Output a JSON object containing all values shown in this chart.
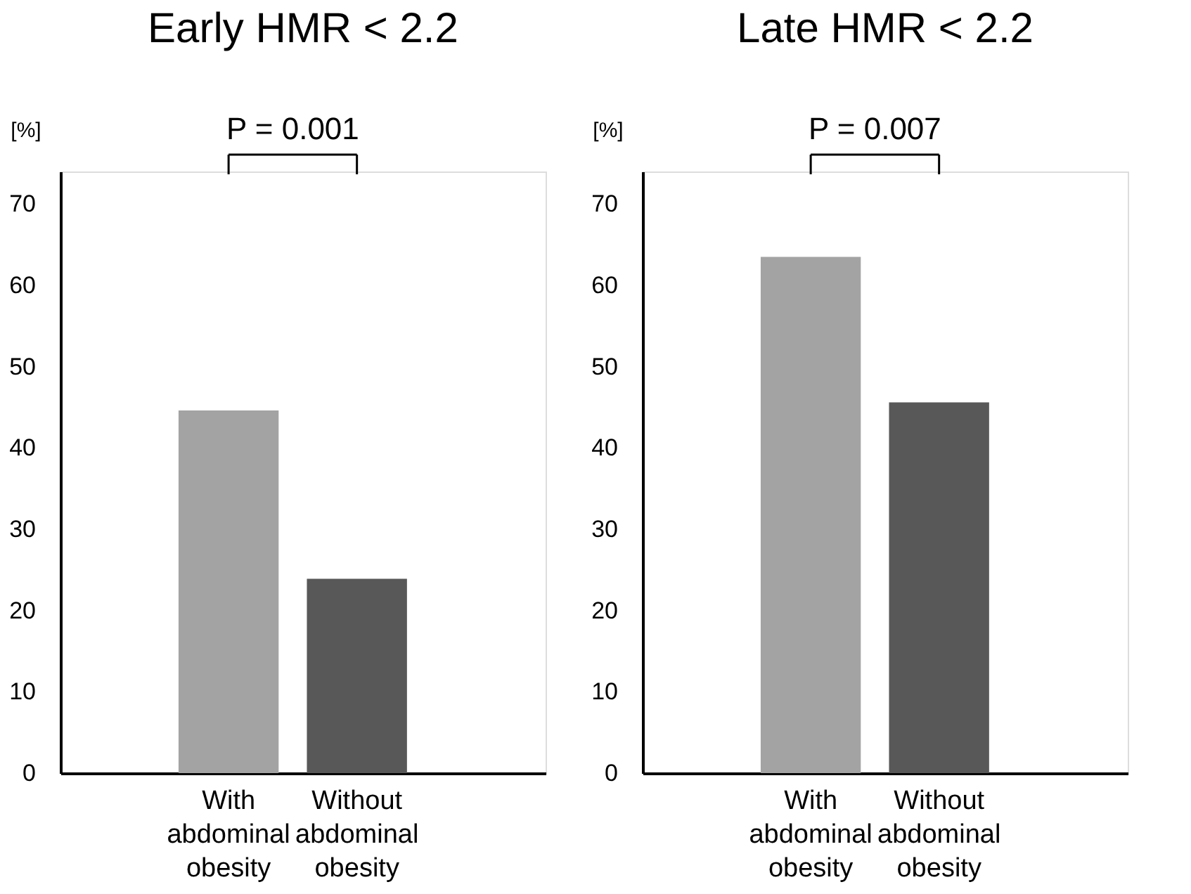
{
  "chart_data": [
    {
      "type": "bar",
      "title": "Early HMR < 2.2",
      "ylabel": "[%]",
      "categories": [
        "With abdominal obesity",
        "Without abdominal obesity"
      ],
      "values": [
        44.6,
        23.9
      ],
      "colors": [
        "#a3a3a3",
        "#585858"
      ],
      "ylim": [
        0,
        74
      ],
      "yticks": [
        0,
        10,
        20,
        30,
        40,
        50,
        60,
        70
      ],
      "grid": false,
      "annotations": [
        "P = 0.001"
      ]
    },
    {
      "type": "bar",
      "title": "Late HMR < 2.2",
      "ylabel": "[%]",
      "categories": [
        "With abdominal obesity",
        "Without abdominal obesity"
      ],
      "values": [
        63.5,
        45.6
      ],
      "colors": [
        "#a3a3a3",
        "#585858"
      ],
      "ylim": [
        0,
        74
      ],
      "yticks": [
        0,
        10,
        20,
        30,
        40,
        50,
        60,
        70
      ],
      "grid": false,
      "annotations": [
        "P = 0.007"
      ]
    }
  ]
}
